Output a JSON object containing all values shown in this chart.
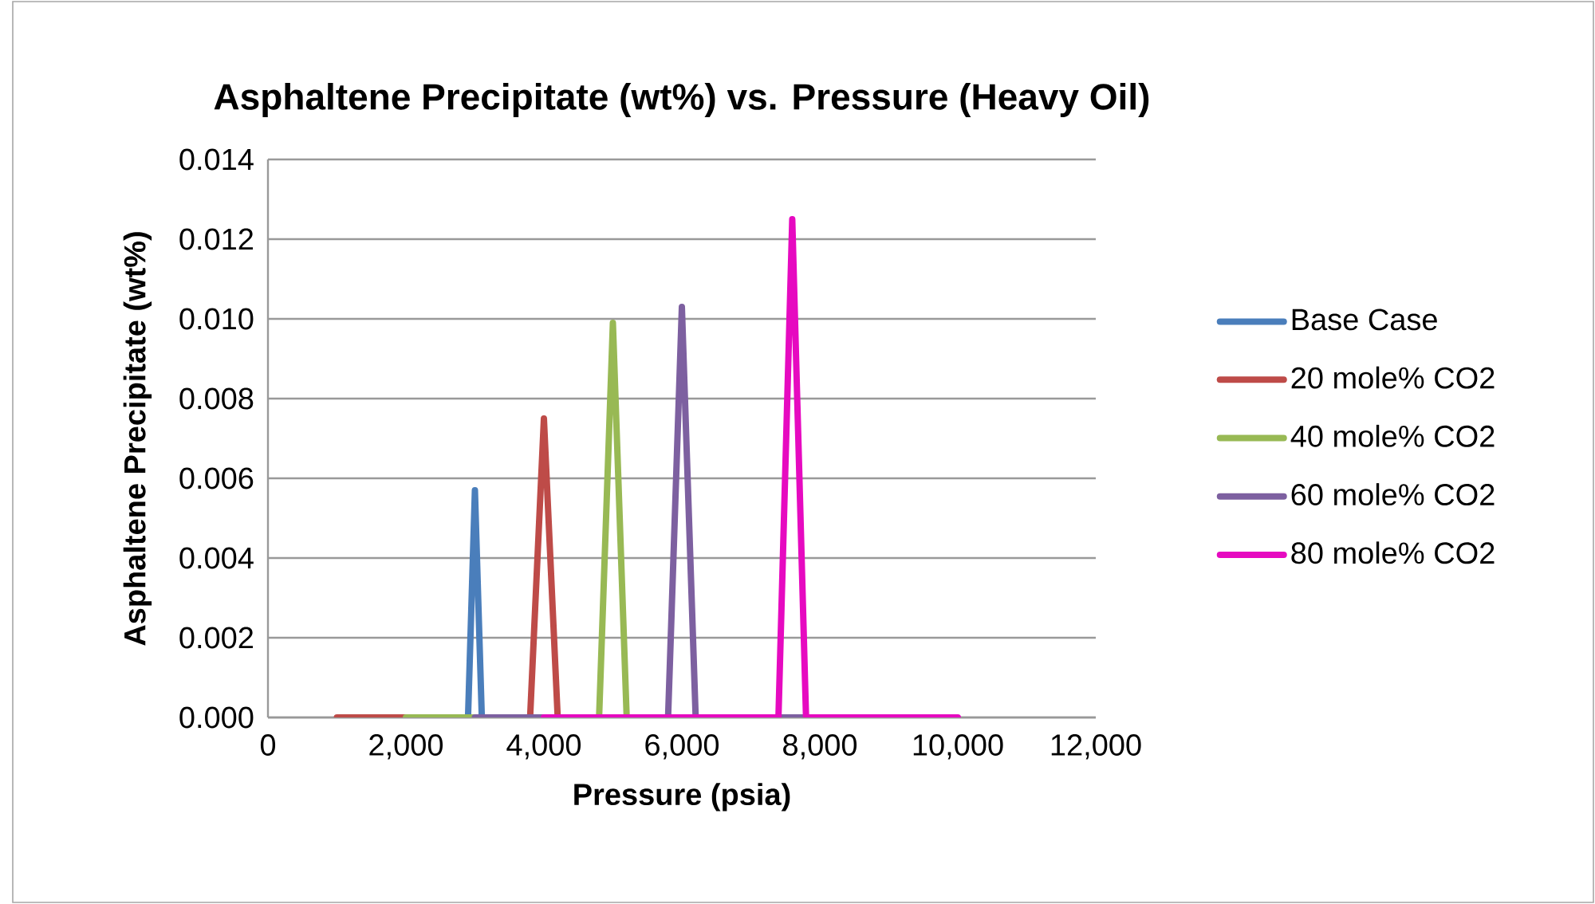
{
  "chart_data": {
    "type": "line",
    "title": "Asphaltene Precipitate (wt%) vs. Pressure (Heavy Oil)",
    "xlabel": "Pressure (psia)",
    "ylabel": "Asphaltene Precipitate (wt%)",
    "xlim": [
      0,
      12000
    ],
    "ylim": [
      0,
      0.014
    ],
    "xticks": [
      0,
      {
        "value": 2000,
        "label": "2,000"
      },
      {
        "value": 4000,
        "label": "4,000"
      },
      {
        "value": 6000,
        "label": "6,000"
      },
      {
        "value": 8000,
        "label": "8,000"
      },
      {
        "value": 10000,
        "label": "10,000"
      },
      {
        "value": 12000,
        "label": "12,000"
      }
    ],
    "yticks": [
      {
        "value": 0,
        "label": "0.000"
      },
      {
        "value": 0.002,
        "label": "0.002"
      },
      {
        "value": 0.004,
        "label": "0.004"
      },
      {
        "value": 0.006,
        "label": "0.006"
      },
      {
        "value": 0.008,
        "label": "0.008"
      },
      {
        "value": 0.01,
        "label": "0.010"
      },
      {
        "value": 0.012,
        "label": "0.012"
      },
      {
        "value": 0.014,
        "label": "0.014"
      }
    ],
    "grid": "y",
    "legend": "right",
    "marker": "none",
    "line_style": "solid",
    "series": [
      {
        "name": "Base Case",
        "color": "#4a7ebb",
        "x": [
          2900,
          3000,
          3100
        ],
        "values": [
          0,
          0.0057,
          0
        ]
      },
      {
        "name": "20 mole% CO2",
        "color": "#be4b48",
        "x": [
          1000,
          3800,
          4000,
          4200
        ],
        "values": [
          0,
          0,
          0.0075,
          0
        ]
      },
      {
        "name": "40 mole% CO2",
        "color": "#98b954",
        "x": [
          2000,
          4800,
          5000,
          5200
        ],
        "values": [
          0,
          0,
          0.0099,
          0
        ]
      },
      {
        "name": "60 mole% CO2",
        "color": "#7d60a0",
        "x": [
          3000,
          5800,
          6000,
          6200,
          8000
        ],
        "values": [
          0,
          0,
          0.0103,
          0,
          0
        ]
      },
      {
        "name": "80 mole% CO2",
        "color": "#e60ac0",
        "x": [
          4000,
          7400,
          7600,
          7800,
          10000
        ],
        "values": [
          0,
          0,
          0.0125,
          0,
          0
        ]
      }
    ]
  }
}
